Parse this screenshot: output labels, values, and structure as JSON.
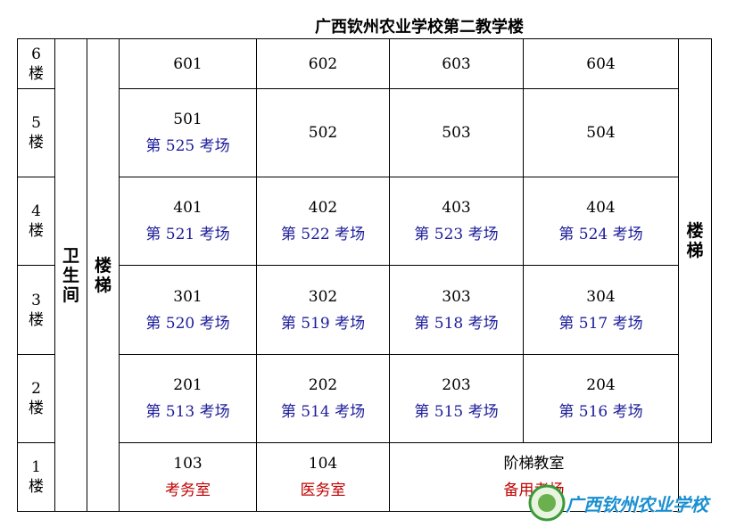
{
  "title": "广西钦州农业学校第二教学楼",
  "left_columns": [
    "卫生间",
    "楼梯"
  ],
  "right_column": "楼梯",
  "floors": [
    {
      "label": "6楼",
      "rooms": [
        {
          "number": "601"
        },
        {
          "number": "602"
        },
        {
          "number": "603"
        },
        {
          "number": "604"
        }
      ]
    },
    {
      "label": "5楼",
      "rooms": [
        {
          "number": "501",
          "exam": "第 525 考场"
        },
        {
          "number": "502"
        },
        {
          "number": "503"
        },
        {
          "number": "504"
        }
      ]
    },
    {
      "label": "4楼",
      "rooms": [
        {
          "number": "401",
          "exam": "第 521 考场"
        },
        {
          "number": "402",
          "exam": "第 522 考场"
        },
        {
          "number": "403",
          "exam": "第 523 考场"
        },
        {
          "number": "404",
          "exam": "第 524 考场"
        }
      ]
    },
    {
      "label": "3楼",
      "rooms": [
        {
          "number": "301",
          "exam": "第 520 考场"
        },
        {
          "number": "302",
          "exam": "第 519 考场"
        },
        {
          "number": "303",
          "exam": "第 518 考场"
        },
        {
          "number": "304",
          "exam": "第 517 考场"
        }
      ]
    },
    {
      "label": "2楼",
      "rooms": [
        {
          "number": "201",
          "exam": "第 513 考场"
        },
        {
          "number": "202",
          "exam": "第 514 考场"
        },
        {
          "number": "203",
          "exam": "第 515 考场"
        },
        {
          "number": "204",
          "exam": "第 516 考场"
        }
      ]
    },
    {
      "label": "1楼",
      "rooms": [
        {
          "number": "103",
          "note": "考务室"
        },
        {
          "number": "104",
          "note": "医务室"
        },
        {
          "number": "阶梯教室",
          "note": "备用考场"
        }
      ]
    }
  ],
  "watermark": "广西钦州农业学校"
}
